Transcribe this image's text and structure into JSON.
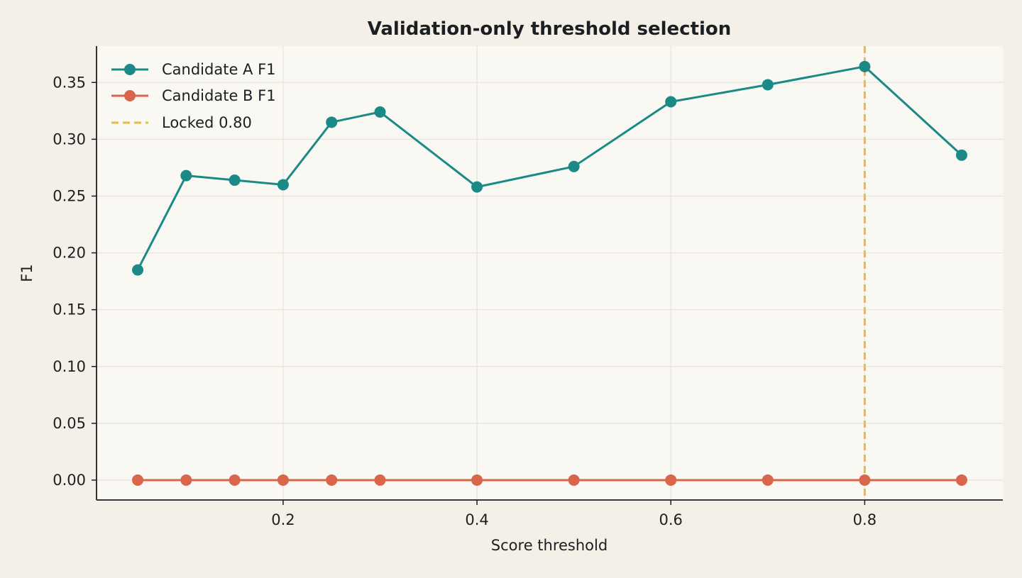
{
  "chart_data": {
    "type": "line",
    "title": "Validation-only threshold selection",
    "xlabel": "Score threshold",
    "ylabel": "F1",
    "x": [
      0.05,
      0.1,
      0.15,
      0.2,
      0.25,
      0.3,
      0.4,
      0.5,
      0.6,
      0.7,
      0.8,
      0.9
    ],
    "series": [
      {
        "name": "Candidate A F1",
        "color": "#1b8a87",
        "values": [
          0.185,
          0.268,
          0.264,
          0.26,
          0.315,
          0.324,
          0.258,
          0.276,
          0.333,
          0.348,
          0.364,
          0.286
        ]
      },
      {
        "name": "Candidate B F1",
        "color": "#d9654b",
        "values": [
          0,
          0,
          0,
          0,
          0,
          0,
          0,
          0,
          0,
          0,
          0,
          0
        ]
      }
    ],
    "reference_line": {
      "name": "Locked 0.80",
      "x": 0.8,
      "color": "#e8b84a",
      "style": "dashed"
    },
    "xlim": [
      0.0075,
      0.9425
    ],
    "ylim": [
      -0.0175,
      0.382
    ],
    "xticks": [
      0.2,
      0.4,
      0.6,
      0.8
    ],
    "xtick_labels": [
      "0.2",
      "0.4",
      "0.6",
      "0.8"
    ],
    "yticks": [
      0.0,
      0.05,
      0.1,
      0.15,
      0.2,
      0.25,
      0.3,
      0.35
    ],
    "ytick_labels": [
      "0.00",
      "0.05",
      "0.10",
      "0.15",
      "0.20",
      "0.25",
      "0.30",
      "0.35"
    ],
    "grid": true,
    "legend_position": "top-left",
    "colors": {
      "figure_background": "#f4f0e8",
      "plot_background": "#f9f8f3",
      "grid": "#e6e3dc",
      "axis": "#1b1f23"
    }
  }
}
